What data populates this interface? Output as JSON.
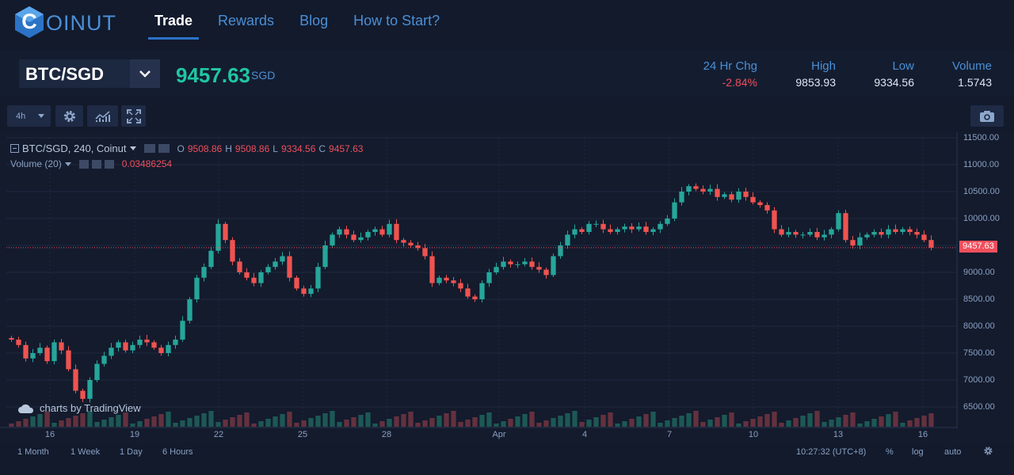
{
  "brand": {
    "logo_letter": "C",
    "logo_word": "OINUT"
  },
  "nav": {
    "items": [
      {
        "label": "Trade",
        "active": true
      },
      {
        "label": "Rewards",
        "active": false
      },
      {
        "label": "Blog",
        "active": false
      },
      {
        "label": "How to Start?",
        "active": false
      }
    ]
  },
  "ticker": {
    "pair": "BTC/SGD",
    "price": "9457.63",
    "currency": "SGD",
    "stats": [
      {
        "label": "24 Hr Chg",
        "value": "-2.84%",
        "negative": true
      },
      {
        "label": "High",
        "value": "9853.93",
        "negative": false
      },
      {
        "label": "Low",
        "value": "9334.56",
        "negative": false
      },
      {
        "label": "Volume",
        "value": "1.5743",
        "negative": false
      }
    ]
  },
  "toolbar": {
    "interval": "4h",
    "icons": [
      "gear-icon",
      "indicators-icon",
      "fullscreen-icon",
      "camera-icon"
    ]
  },
  "legend": {
    "symbol": "BTC/SGD, 240, Coinut",
    "o_label": "O",
    "o": "9508.86",
    "h_label": "H",
    "h": "9508.86",
    "l_label": "L",
    "l": "9334.56",
    "c_label": "C",
    "c": "9457.63",
    "volume_label": "Volume (20)",
    "volume_value": "0.03486254"
  },
  "chart_data": {
    "type": "candlestick",
    "y_ticks": [
      "11500.00",
      "11000.00",
      "10500.00",
      "10000.00",
      "9500.00",
      "9000.00",
      "8500.00",
      "8000.00",
      "7500.00",
      "7000.00",
      "6500.00"
    ],
    "ylim": [
      6500,
      11500
    ],
    "x_ticks": [
      "16",
      "19",
      "22",
      "25",
      "28",
      "Apr",
      "4",
      "7",
      "10",
      "13",
      "16"
    ],
    "last_price": "9457.63",
    "close_series": [
      7750,
      7650,
      7400,
      7500,
      7600,
      7350,
      7700,
      7550,
      7200,
      6800,
      6650,
      7000,
      7300,
      7450,
      7600,
      7700,
      7550,
      7650,
      7750,
      7700,
      7600,
      7500,
      7650,
      7750,
      8100,
      8500,
      8900,
      9100,
      9400,
      9900,
      9600,
      9200,
      9000,
      8900,
      8800,
      9000,
      9100,
      9200,
      9300,
      8900,
      8700,
      8600,
      8700,
      9100,
      9500,
      9700,
      9800,
      9700,
      9600,
      9650,
      9750,
      9800,
      9700,
      9900,
      9600,
      9550,
      9500,
      9450,
      9300,
      8800,
      8900,
      8850,
      8800,
      8700,
      8550,
      8500,
      8800,
      9000,
      9100,
      9200,
      9150,
      9150,
      9200,
      9100,
      9050,
      8950,
      9300,
      9500,
      9700,
      9800,
      9750,
      9900,
      9900,
      9800,
      9750,
      9800,
      9850,
      9800,
      9850,
      9750,
      9800,
      9900,
      10000,
      10300,
      10500,
      10600,
      10550,
      10500,
      10550,
      10400,
      10450,
      10350,
      10500,
      10400,
      10300,
      10250,
      10150,
      9800,
      9700,
      9750,
      9700,
      9700,
      9750,
      9650,
      9700,
      9800,
      10100,
      9600,
      9500,
      9650,
      9700,
      9750,
      9700,
      9800,
      9750,
      9800,
      9750,
      9700,
      9600,
      9457.63
    ],
    "grid": true
  },
  "time_ranges": [
    "1 Month",
    "1 Week",
    "1 Day",
    "6 Hours"
  ],
  "status": {
    "time": "10:27:32 (UTC+8)",
    "percent": "%",
    "log": "log",
    "auto": "auto"
  },
  "watermark": "charts by TradingView",
  "colors": {
    "up": "#26a69a",
    "down": "#ef5350",
    "accent": "#2b73c6",
    "price": "#1fc7a2"
  }
}
